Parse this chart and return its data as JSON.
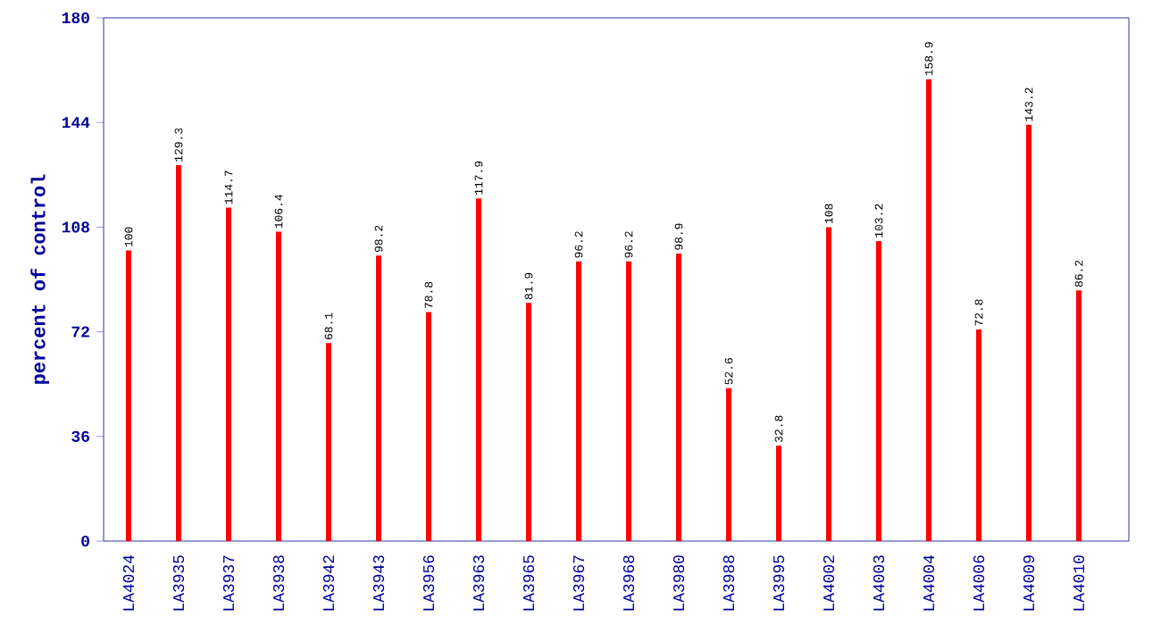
{
  "chart_data": {
    "type": "bar",
    "ylabel": "percent of control",
    "categories": [
      "LA4024",
      "LA3935",
      "LA3937",
      "LA3938",
      "LA3942",
      "LA3943",
      "LA3956",
      "LA3963",
      "LA3965",
      "LA3967",
      "LA3968",
      "LA3980",
      "LA3988",
      "LA3995",
      "LA4002",
      "LA4003",
      "LA4004",
      "LA4006",
      "LA4009",
      "LA4010"
    ],
    "values": [
      100,
      129.3,
      114.7,
      106.4,
      68.1,
      98.2,
      78.8,
      117.9,
      81.9,
      96.2,
      96.2,
      98.9,
      52.6,
      32.8,
      108,
      103.2,
      158.9,
      72.8,
      143.2,
      86.2
    ],
    "color": "#ff0000",
    "ylim": [
      0,
      180
    ],
    "yticks": [
      0,
      36,
      72,
      108,
      144,
      180
    ],
    "data_labels": true
  }
}
